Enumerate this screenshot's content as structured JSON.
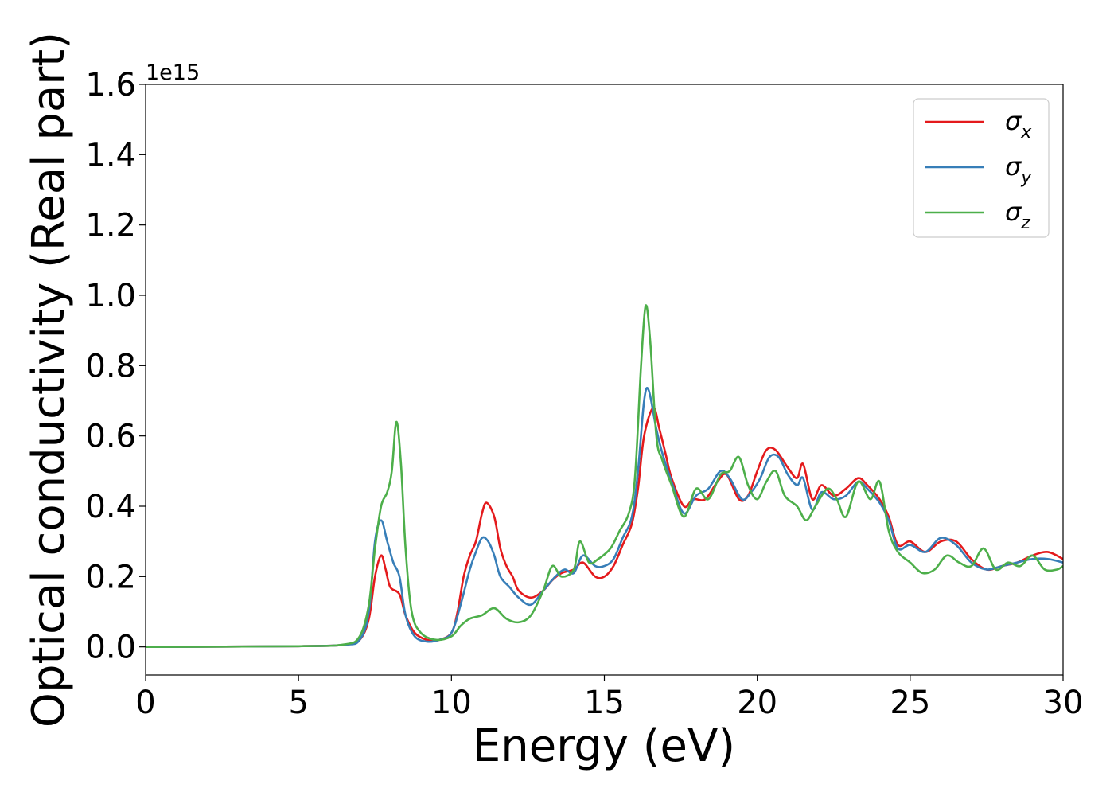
{
  "chart_data": {
    "type": "line",
    "xlabel": "Energy (eV)",
    "ylabel": "Optical conductivity (Real part)",
    "y_offset_label": "1e15",
    "xlim": [
      0,
      30
    ],
    "ylim": [
      -0.08,
      1.6
    ],
    "xticks": [
      "0",
      "5",
      "10",
      "15",
      "20",
      "25",
      "30"
    ],
    "yticks": [
      "0.0",
      "0.2",
      "0.4",
      "0.6",
      "0.8",
      "1.0",
      "1.2",
      "1.4",
      "1.6"
    ],
    "grid": false,
    "legend_position": "top-right",
    "series": [
      {
        "name": "σ",
        "subscript": "x",
        "color": "#e41a1c",
        "points": [
          [
            0,
            0
          ],
          [
            5,
            0.002
          ],
          [
            6.5,
            0.006
          ],
          [
            7.0,
            0.02
          ],
          [
            7.3,
            0.08
          ],
          [
            7.5,
            0.2
          ],
          [
            7.7,
            0.26
          ],
          [
            7.85,
            0.22
          ],
          [
            8.0,
            0.17
          ],
          [
            8.3,
            0.15
          ],
          [
            8.5,
            0.09
          ],
          [
            8.8,
            0.04
          ],
          [
            9.2,
            0.02
          ],
          [
            9.6,
            0.02
          ],
          [
            10.0,
            0.04
          ],
          [
            10.2,
            0.1
          ],
          [
            10.4,
            0.2
          ],
          [
            10.6,
            0.26
          ],
          [
            10.8,
            0.3
          ],
          [
            11.0,
            0.38
          ],
          [
            11.15,
            0.41
          ],
          [
            11.4,
            0.37
          ],
          [
            11.6,
            0.28
          ],
          [
            11.8,
            0.23
          ],
          [
            12.0,
            0.2
          ],
          [
            12.2,
            0.16
          ],
          [
            12.6,
            0.14
          ],
          [
            13.0,
            0.16
          ],
          [
            13.3,
            0.19
          ],
          [
            13.6,
            0.21
          ],
          [
            14.0,
            0.22
          ],
          [
            14.3,
            0.24
          ],
          [
            14.7,
            0.2
          ],
          [
            15.0,
            0.2
          ],
          [
            15.3,
            0.23
          ],
          [
            15.6,
            0.29
          ],
          [
            15.9,
            0.35
          ],
          [
            16.1,
            0.45
          ],
          [
            16.3,
            0.6
          ],
          [
            16.6,
            0.68
          ],
          [
            16.8,
            0.62
          ],
          [
            17.0,
            0.55
          ],
          [
            17.2,
            0.48
          ],
          [
            17.6,
            0.4
          ],
          [
            17.9,
            0.42
          ],
          [
            18.3,
            0.42
          ],
          [
            18.7,
            0.47
          ],
          [
            19.0,
            0.49
          ],
          [
            19.4,
            0.42
          ],
          [
            19.7,
            0.43
          ],
          [
            20.0,
            0.5
          ],
          [
            20.3,
            0.56
          ],
          [
            20.6,
            0.56
          ],
          [
            21.0,
            0.51
          ],
          [
            21.3,
            0.48
          ],
          [
            21.5,
            0.52
          ],
          [
            21.8,
            0.42
          ],
          [
            22.1,
            0.46
          ],
          [
            22.5,
            0.43
          ],
          [
            22.9,
            0.45
          ],
          [
            23.3,
            0.48
          ],
          [
            23.6,
            0.46
          ],
          [
            24.0,
            0.42
          ],
          [
            24.3,
            0.37
          ],
          [
            24.6,
            0.29
          ],
          [
            25.0,
            0.3
          ],
          [
            25.5,
            0.27
          ],
          [
            26.0,
            0.3
          ],
          [
            26.5,
            0.3
          ],
          [
            27.0,
            0.25
          ],
          [
            27.5,
            0.22
          ],
          [
            28.0,
            0.23
          ],
          [
            28.5,
            0.24
          ],
          [
            29.0,
            0.26
          ],
          [
            29.5,
            0.27
          ],
          [
            30.0,
            0.25
          ]
        ]
      },
      {
        "name": "σ",
        "subscript": "y",
        "color": "#377eb8",
        "points": [
          [
            0,
            0
          ],
          [
            5,
            0.002
          ],
          [
            6.5,
            0.006
          ],
          [
            7.0,
            0.02
          ],
          [
            7.3,
            0.1
          ],
          [
            7.5,
            0.3
          ],
          [
            7.7,
            0.36
          ],
          [
            7.9,
            0.3
          ],
          [
            8.1,
            0.24
          ],
          [
            8.3,
            0.2
          ],
          [
            8.5,
            0.09
          ],
          [
            8.8,
            0.03
          ],
          [
            9.2,
            0.015
          ],
          [
            9.6,
            0.02
          ],
          [
            10.0,
            0.04
          ],
          [
            10.3,
            0.12
          ],
          [
            10.6,
            0.22
          ],
          [
            10.8,
            0.27
          ],
          [
            11.0,
            0.31
          ],
          [
            11.2,
            0.3
          ],
          [
            11.4,
            0.26
          ],
          [
            11.6,
            0.2
          ],
          [
            11.9,
            0.17
          ],
          [
            12.2,
            0.14
          ],
          [
            12.6,
            0.12
          ],
          [
            13.0,
            0.16
          ],
          [
            13.4,
            0.2
          ],
          [
            13.7,
            0.22
          ],
          [
            14.0,
            0.21
          ],
          [
            14.3,
            0.26
          ],
          [
            14.7,
            0.23
          ],
          [
            15.0,
            0.23
          ],
          [
            15.3,
            0.25
          ],
          [
            15.6,
            0.31
          ],
          [
            15.9,
            0.37
          ],
          [
            16.1,
            0.5
          ],
          [
            16.3,
            0.7
          ],
          [
            16.45,
            0.73
          ],
          [
            16.7,
            0.62
          ],
          [
            16.9,
            0.55
          ],
          [
            17.2,
            0.47
          ],
          [
            17.6,
            0.38
          ],
          [
            18.0,
            0.43
          ],
          [
            18.4,
            0.45
          ],
          [
            18.8,
            0.5
          ],
          [
            19.1,
            0.48
          ],
          [
            19.5,
            0.42
          ],
          [
            19.8,
            0.44
          ],
          [
            20.1,
            0.48
          ],
          [
            20.4,
            0.54
          ],
          [
            20.7,
            0.54
          ],
          [
            21.0,
            0.49
          ],
          [
            21.3,
            0.46
          ],
          [
            21.5,
            0.48
          ],
          [
            21.8,
            0.39
          ],
          [
            22.1,
            0.44
          ],
          [
            22.5,
            0.42
          ],
          [
            22.9,
            0.43
          ],
          [
            23.3,
            0.47
          ],
          [
            23.6,
            0.45
          ],
          [
            24.0,
            0.41
          ],
          [
            24.3,
            0.36
          ],
          [
            24.6,
            0.28
          ],
          [
            25.0,
            0.29
          ],
          [
            25.5,
            0.27
          ],
          [
            26.0,
            0.31
          ],
          [
            26.5,
            0.29
          ],
          [
            27.0,
            0.24
          ],
          [
            27.5,
            0.22
          ],
          [
            28.0,
            0.23
          ],
          [
            28.5,
            0.24
          ],
          [
            29.0,
            0.25
          ],
          [
            29.5,
            0.25
          ],
          [
            30.0,
            0.24
          ]
        ]
      },
      {
        "name": "σ",
        "subscript": "z",
        "color": "#4daf4a",
        "points": [
          [
            0,
            0
          ],
          [
            5,
            0.002
          ],
          [
            6.5,
            0.007
          ],
          [
            7.0,
            0.03
          ],
          [
            7.3,
            0.12
          ],
          [
            7.5,
            0.28
          ],
          [
            7.7,
            0.4
          ],
          [
            7.9,
            0.44
          ],
          [
            8.05,
            0.5
          ],
          [
            8.2,
            0.64
          ],
          [
            8.35,
            0.52
          ],
          [
            8.5,
            0.28
          ],
          [
            8.7,
            0.1
          ],
          [
            9.0,
            0.04
          ],
          [
            9.5,
            0.02
          ],
          [
            10.0,
            0.03
          ],
          [
            10.3,
            0.06
          ],
          [
            10.6,
            0.08
          ],
          [
            11.0,
            0.09
          ],
          [
            11.4,
            0.11
          ],
          [
            11.8,
            0.08
          ],
          [
            12.2,
            0.07
          ],
          [
            12.6,
            0.09
          ],
          [
            13.0,
            0.16
          ],
          [
            13.3,
            0.23
          ],
          [
            13.6,
            0.2
          ],
          [
            14.0,
            0.22
          ],
          [
            14.2,
            0.3
          ],
          [
            14.5,
            0.24
          ],
          [
            14.8,
            0.25
          ],
          [
            15.2,
            0.28
          ],
          [
            15.5,
            0.33
          ],
          [
            15.8,
            0.38
          ],
          [
            16.0,
            0.48
          ],
          [
            16.2,
            0.8
          ],
          [
            16.35,
            0.97
          ],
          [
            16.5,
            0.87
          ],
          [
            16.7,
            0.6
          ],
          [
            16.9,
            0.53
          ],
          [
            17.2,
            0.46
          ],
          [
            17.6,
            0.37
          ],
          [
            18.0,
            0.45
          ],
          [
            18.4,
            0.42
          ],
          [
            18.8,
            0.49
          ],
          [
            19.1,
            0.5
          ],
          [
            19.4,
            0.54
          ],
          [
            19.7,
            0.46
          ],
          [
            20.0,
            0.42
          ],
          [
            20.3,
            0.47
          ],
          [
            20.6,
            0.5
          ],
          [
            20.9,
            0.43
          ],
          [
            21.3,
            0.4
          ],
          [
            21.6,
            0.36
          ],
          [
            21.9,
            0.4
          ],
          [
            22.3,
            0.45
          ],
          [
            22.6,
            0.42
          ],
          [
            22.9,
            0.37
          ],
          [
            23.3,
            0.47
          ],
          [
            23.7,
            0.42
          ],
          [
            24.0,
            0.47
          ],
          [
            24.3,
            0.33
          ],
          [
            24.6,
            0.27
          ],
          [
            25.0,
            0.24
          ],
          [
            25.4,
            0.21
          ],
          [
            25.8,
            0.22
          ],
          [
            26.2,
            0.26
          ],
          [
            26.6,
            0.24
          ],
          [
            27.0,
            0.23
          ],
          [
            27.4,
            0.28
          ],
          [
            27.8,
            0.22
          ],
          [
            28.2,
            0.24
          ],
          [
            28.6,
            0.23
          ],
          [
            29.0,
            0.26
          ],
          [
            29.4,
            0.22
          ],
          [
            29.8,
            0.22
          ],
          [
            30.0,
            0.23
          ]
        ]
      }
    ]
  }
}
